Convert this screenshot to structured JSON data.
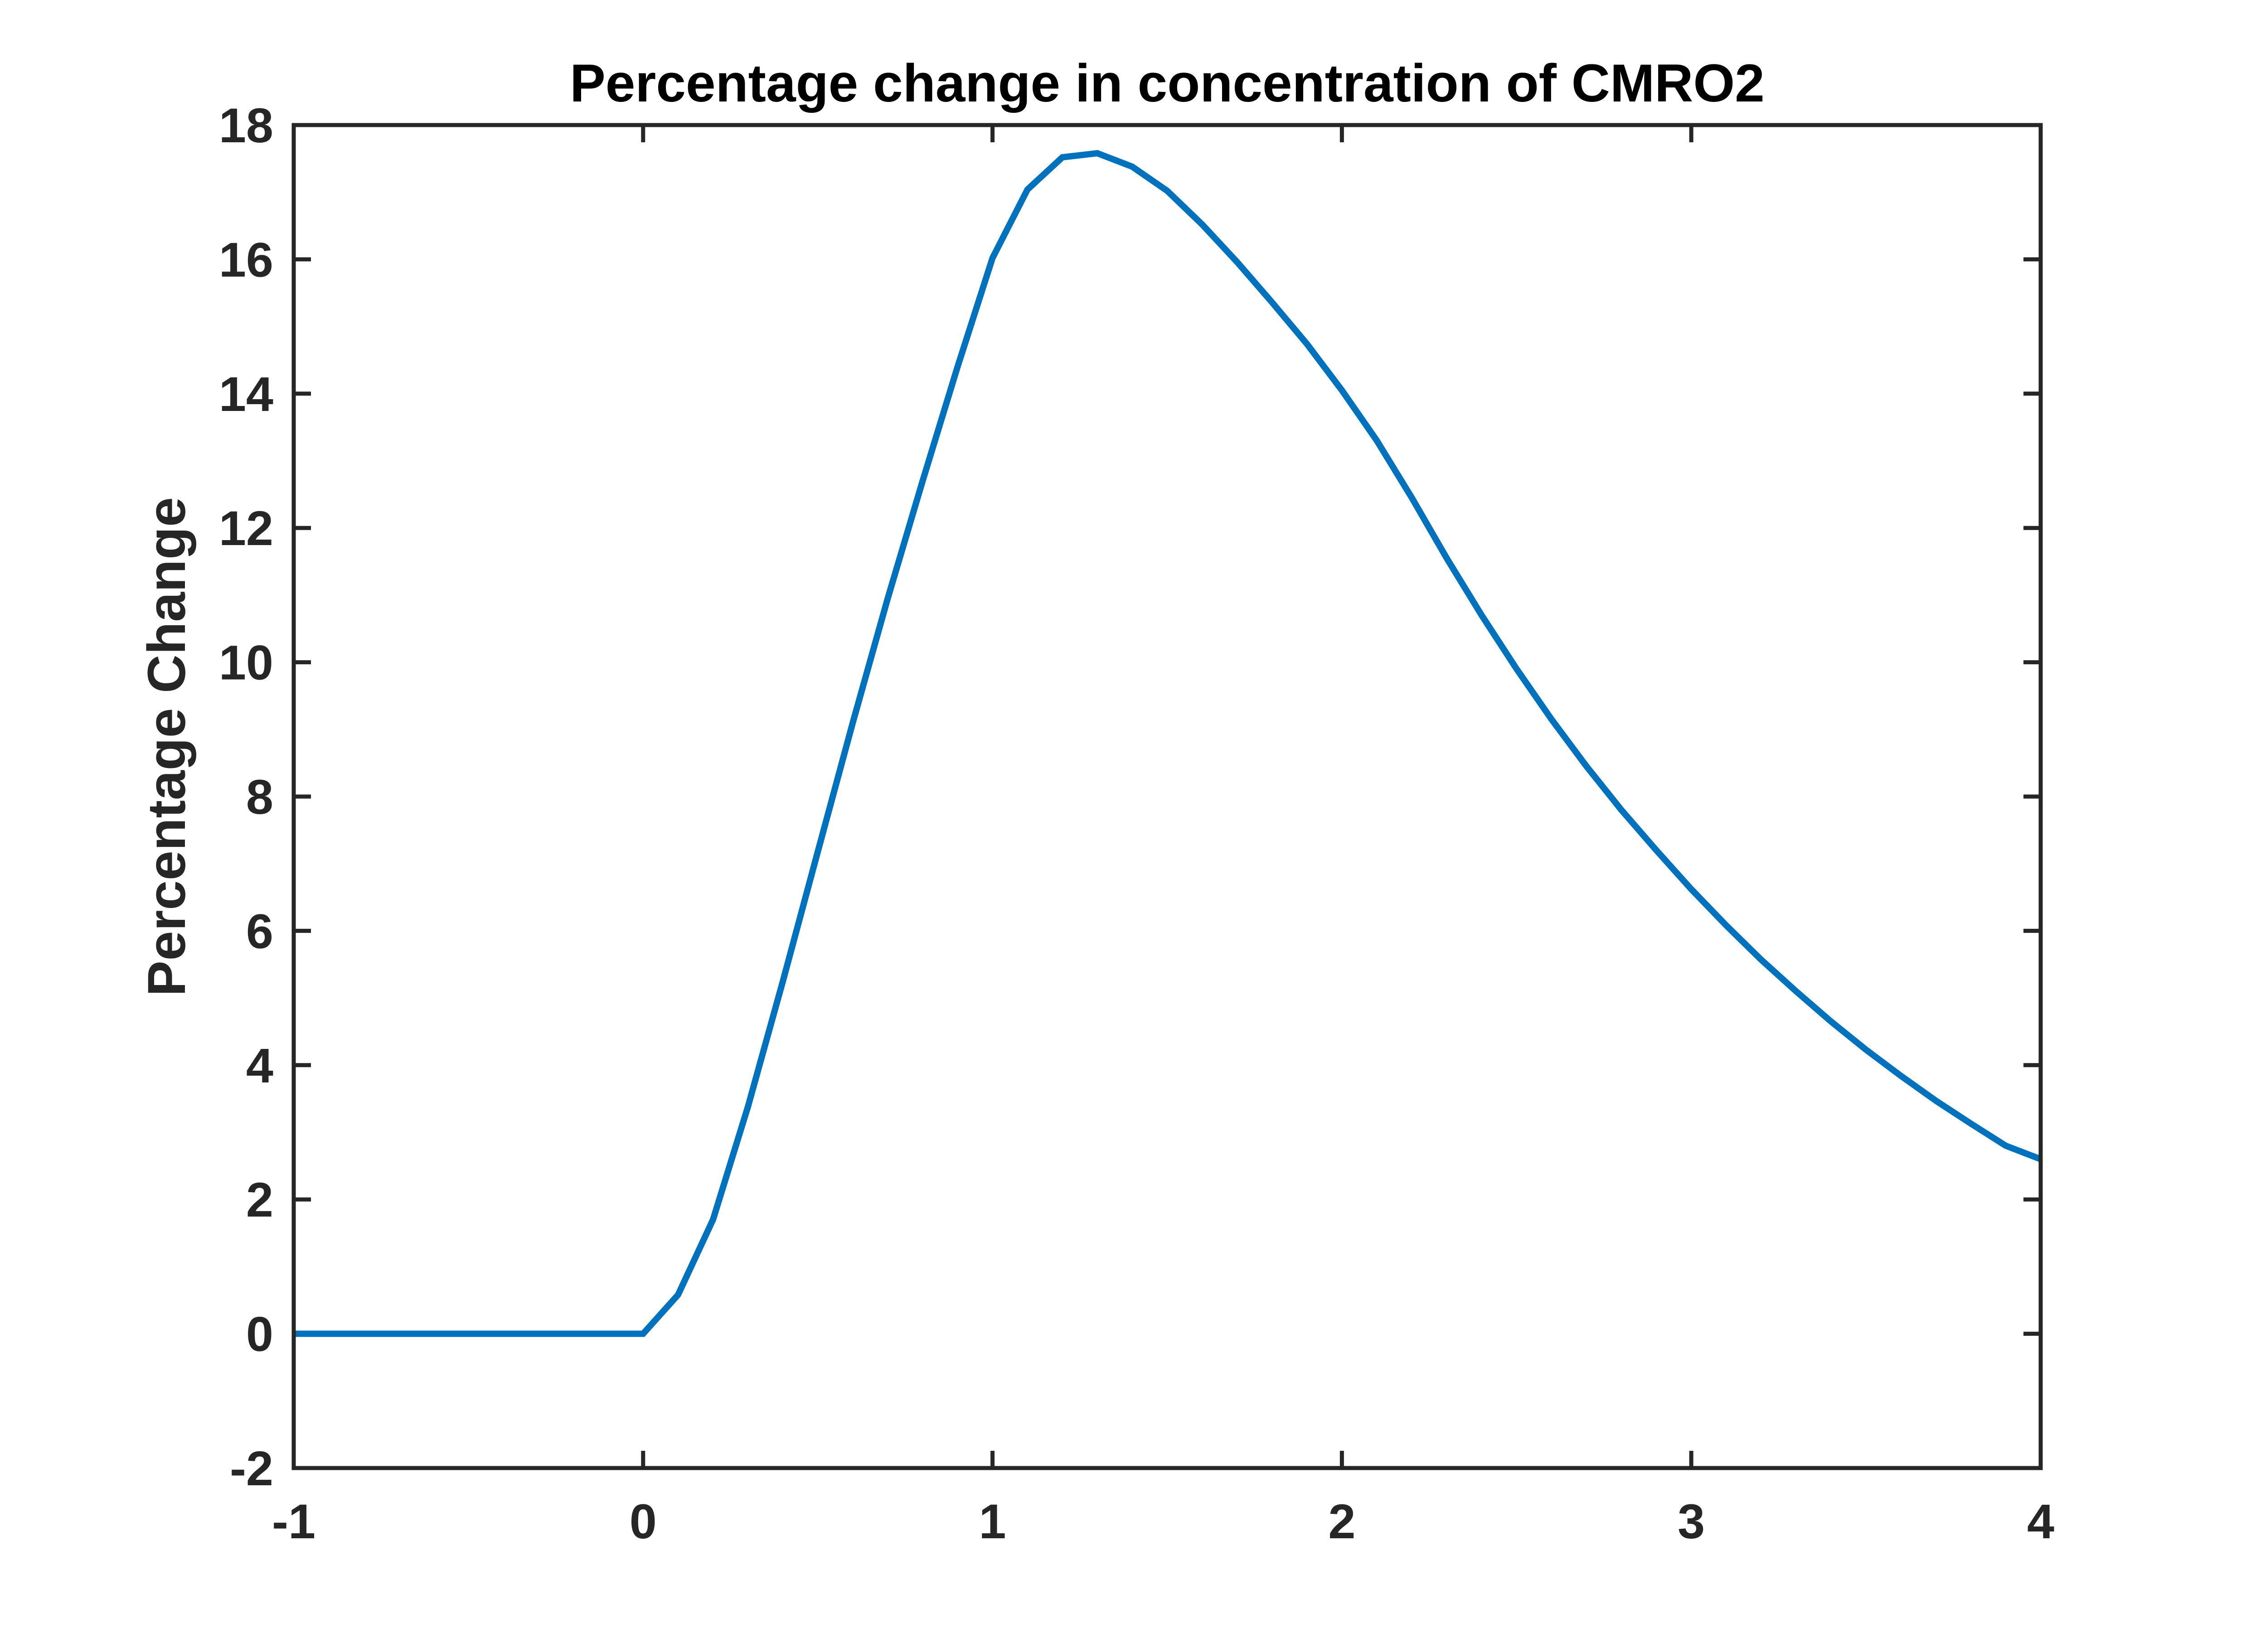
{
  "chart_data": {
    "type": "line",
    "title": "Percentage change in concentration of CMRO2",
    "xlabel": "",
    "ylabel": "Percentage Change",
    "xlim": [
      -1,
      4
    ],
    "ylim": [
      -2,
      18
    ],
    "xticks": [
      -1,
      0,
      1,
      2,
      3,
      4
    ],
    "yticks": [
      -2,
      0,
      2,
      4,
      6,
      8,
      10,
      12,
      14,
      16,
      18
    ],
    "grid": false,
    "line_color": "#0072BD",
    "series": [
      {
        "x": [
          -1,
          -0.9,
          -0.8,
          -0.7,
          -0.6,
          -0.5,
          -0.4,
          -0.3,
          -0.2,
          -0.1,
          0,
          0.1,
          0.2,
          0.3,
          0.4,
          0.5,
          0.6,
          0.7,
          0.8,
          0.9,
          1.0,
          1.1,
          1.2,
          1.3,
          1.4,
          1.5,
          1.6,
          1.7,
          1.8,
          1.9,
          2.0,
          2.1,
          2.2,
          2.3,
          2.4,
          2.5,
          2.6,
          2.7,
          2.8,
          2.9,
          3.0,
          3.1,
          3.2,
          3.3,
          3.4,
          3.5,
          3.6,
          3.7,
          3.8,
          3.9,
          4.0
        ],
        "y": [
          0,
          0,
          0,
          0,
          0,
          0,
          0,
          0,
          0,
          0,
          0,
          0.58,
          1.7,
          3.38,
          5.25,
          7.18,
          9.1,
          10.95,
          12.7,
          14.4,
          16.02,
          17.04,
          17.52,
          17.58,
          17.38,
          17.02,
          16.52,
          15.96,
          15.36,
          14.74,
          14.05,
          13.3,
          12.45,
          11.55,
          10.7,
          9.9,
          9.15,
          8.45,
          7.8,
          7.2,
          6.62,
          6.08,
          5.57,
          5.1,
          4.65,
          4.23,
          3.84,
          3.47,
          3.13,
          2.8,
          2.6
        ]
      }
    ]
  }
}
